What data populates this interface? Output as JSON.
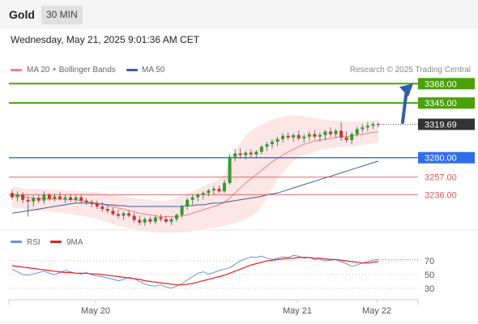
{
  "header": {
    "instrument": "Gold",
    "timeframe": "30 MIN",
    "datetime": "Wednesday, May 21, 2025 9:01:36 AM CET"
  },
  "legend": {
    "ma20_label": "MA 20 + Bollinger Bands",
    "ma20_color": "#f08080",
    "ma50_label": "MA 50",
    "ma50_color": "#3a5f9c",
    "research": "Research © 2025 Trading Central"
  },
  "colors": {
    "green": "#4aa10a",
    "blue_level": "#2f6ee8",
    "red_level": "#e05555",
    "current": "#333333",
    "arrow": "#2f5fa8",
    "band_fill": "#fde3e3",
    "rsi": "#6a8fdc",
    "rsi_ma": "#e02020"
  },
  "chart_data": [
    {
      "type": "candlestick",
      "title": "Gold",
      "timeframe": "30 MIN",
      "x_labels": [
        "May 20",
        "May 21",
        "May 22"
      ],
      "ylim": [
        3195,
        3375
      ],
      "levels": [
        {
          "label": "3368.00",
          "value": 3368.0,
          "kind": "resistance"
        },
        {
          "label": "3345.00",
          "value": 3345.0,
          "kind": "resistance"
        },
        {
          "label": "3319.69",
          "value": 3319.69,
          "kind": "current"
        },
        {
          "label": "3280.00",
          "value": 3280.0,
          "kind": "pivot"
        },
        {
          "label": "3257.00",
          "value": 3257.0,
          "kind": "support"
        },
        {
          "label": "3236.00",
          "value": 3236.0,
          "kind": "support"
        }
      ],
      "series": [
        {
          "kind": "ohlc",
          "candles": [
            [
              3238,
              3242,
              3230,
              3233
            ],
            [
              3233,
              3240,
              3228,
              3236
            ],
            [
              3236,
              3239,
              3226,
              3230
            ],
            [
              3230,
              3234,
              3210,
              3228
            ],
            [
              3228,
              3235,
              3222,
              3232
            ],
            [
              3232,
              3236,
              3226,
              3229
            ],
            [
              3229,
              3240,
              3225,
              3236
            ],
            [
              3236,
              3238,
              3229,
              3231
            ],
            [
              3231,
              3237,
              3228,
              3234
            ],
            [
              3234,
              3239,
              3229,
              3231
            ],
            [
              3231,
              3236,
              3226,
              3233
            ],
            [
              3233,
              3237,
              3228,
              3230
            ],
            [
              3230,
              3235,
              3227,
              3233
            ],
            [
              3233,
              3236,
              3226,
              3229
            ],
            [
              3229,
              3232,
              3224,
              3227
            ],
            [
              3227,
              3230,
              3221,
              3225
            ],
            [
              3225,
              3229,
              3219,
              3222
            ],
            [
              3222,
              3227,
              3216,
              3219
            ],
            [
              3219,
              3224,
              3214,
              3217
            ],
            [
              3217,
              3221,
              3211,
              3213
            ],
            [
              3213,
              3218,
              3208,
              3211
            ],
            [
              3211,
              3216,
              3206,
              3214
            ],
            [
              3214,
              3218,
              3209,
              3211
            ],
            [
              3211,
              3215,
              3203,
              3206
            ],
            [
              3206,
              3211,
              3200,
              3203
            ],
            [
              3203,
              3209,
              3199,
              3207
            ],
            [
              3207,
              3210,
              3201,
              3204
            ],
            [
              3204,
              3212,
              3201,
              3209
            ],
            [
              3209,
              3213,
              3204,
              3207
            ],
            [
              3207,
              3211,
              3202,
              3204
            ],
            [
              3204,
              3209,
              3200,
              3207
            ],
            [
              3207,
              3214,
              3204,
              3212
            ],
            [
              3212,
              3224,
              3209,
              3222
            ],
            [
              3222,
              3232,
              3218,
              3230
            ],
            [
              3230,
              3236,
              3224,
              3233
            ],
            [
              3233,
              3238,
              3228,
              3236
            ],
            [
              3236,
              3240,
              3230,
              3238
            ],
            [
              3238,
              3243,
              3234,
              3241
            ],
            [
              3241,
              3246,
              3236,
              3243
            ],
            [
              3243,
              3247,
              3238,
              3240
            ],
            [
              3240,
              3254,
              3238,
              3250
            ],
            [
              3250,
              3284,
              3248,
              3281
            ],
            [
              3281,
              3290,
              3276,
              3285
            ],
            [
              3285,
              3291,
              3279,
              3283
            ],
            [
              3283,
              3288,
              3278,
              3286
            ],
            [
              3286,
              3290,
              3280,
              3284
            ],
            [
              3284,
              3289,
              3279,
              3287
            ],
            [
              3287,
              3295,
              3284,
              3293
            ],
            [
              3293,
              3299,
              3288,
              3296
            ],
            [
              3296,
              3302,
              3291,
              3299
            ],
            [
              3299,
              3305,
              3294,
              3302
            ],
            [
              3302,
              3309,
              3298,
              3306
            ],
            [
              3306,
              3310,
              3301,
              3304
            ],
            [
              3304,
              3309,
              3299,
              3307
            ],
            [
              3307,
              3312,
              3301,
              3303
            ],
            [
              3303,
              3308,
              3298,
              3305
            ],
            [
              3305,
              3311,
              3300,
              3308
            ],
            [
              3308,
              3313,
              3302,
              3305
            ],
            [
              3305,
              3310,
              3299,
              3307
            ],
            [
              3307,
              3313,
              3301,
              3311
            ],
            [
              3311,
              3316,
              3305,
              3308
            ],
            [
              3308,
              3314,
              3304,
              3312
            ],
            [
              3312,
              3322,
              3300,
              3304
            ],
            [
              3304,
              3311,
              3298,
              3301
            ],
            [
              3301,
              3310,
              3296,
              3308
            ],
            [
              3308,
              3317,
              3305,
              3314
            ],
            [
              3314,
              3320,
              3310,
              3316
            ],
            [
              3316,
              3322,
              3312,
              3318
            ],
            [
              3318,
              3322,
              3314,
              3320
            ],
            [
              3320,
              3322,
              3316,
              3319.69
            ]
          ]
        },
        {
          "name": "MA 20 + Bollinger Bands",
          "kind": "ma20",
          "values": [
            3236,
            3235,
            3234,
            3233,
            3232,
            3232,
            3232,
            3231,
            3231,
            3231,
            3230,
            3230,
            3230,
            3229,
            3228,
            3227,
            3226,
            3225,
            3223,
            3222,
            3220,
            3219,
            3217,
            3216,
            3214,
            3213,
            3212,
            3211,
            3210,
            3210,
            3210,
            3210,
            3211,
            3212,
            3214,
            3216,
            3218,
            3220,
            3222,
            3224,
            3227,
            3232,
            3238,
            3244,
            3250,
            3255,
            3260,
            3265,
            3270,
            3275,
            3279,
            3283,
            3287,
            3290,
            3293,
            3296,
            3298,
            3300,
            3301,
            3302,
            3303,
            3304,
            3305,
            3305,
            3306,
            3307,
            3308,
            3309,
            3310,
            3311
          ]
        },
        {
          "name": "",
          "kind": "bb_upper",
          "values": [
            3246,
            3245,
            3244,
            3243,
            3243,
            3243,
            3243,
            3242,
            3242,
            3242,
            3241,
            3241,
            3241,
            3240,
            3240,
            3239,
            3239,
            3238,
            3237,
            3236,
            3235,
            3234,
            3233,
            3232,
            3231,
            3230,
            3230,
            3229,
            3229,
            3229,
            3230,
            3232,
            3234,
            3237,
            3240,
            3243,
            3246,
            3249,
            3252,
            3255,
            3260,
            3275,
            3288,
            3298,
            3306,
            3312,
            3316,
            3319,
            3322,
            3325,
            3327,
            3329,
            3330,
            3330,
            3330,
            3329,
            3328,
            3327,
            3326,
            3325,
            3324,
            3324,
            3323,
            3323,
            3323,
            3323,
            3323,
            3324,
            3324,
            3325
          ]
        },
        {
          "name": "",
          "kind": "bb_lower",
          "values": [
            3220,
            3220,
            3219,
            3218,
            3217,
            3217,
            3216,
            3216,
            3215,
            3215,
            3214,
            3213,
            3212,
            3211,
            3210,
            3209,
            3207,
            3205,
            3203,
            3201,
            3199,
            3198,
            3196,
            3195,
            3194,
            3193,
            3192,
            3191,
            3191,
            3191,
            3191,
            3191,
            3191,
            3192,
            3193,
            3194,
            3195,
            3196,
            3197,
            3198,
            3199,
            3201,
            3203,
            3205,
            3207,
            3210,
            3215,
            3222,
            3232,
            3243,
            3254,
            3262,
            3270,
            3276,
            3280,
            3283,
            3285,
            3287,
            3289,
            3290,
            3291,
            3292,
            3293,
            3293,
            3293,
            3294,
            3295,
            3296,
            3297,
            3298
          ]
        },
        {
          "name": "MA 50",
          "kind": "ma50",
          "values": [
            3214,
            3215,
            3216,
            3217,
            3218,
            3219,
            3220,
            3221,
            3222,
            3223,
            3224,
            3225,
            3226,
            3226,
            3226,
            3226,
            3225,
            3225,
            3224,
            3224,
            3223,
            3223,
            3222,
            3222,
            3222,
            3222,
            3222,
            3222,
            3222,
            3222,
            3222,
            3222,
            3222,
            3223,
            3223,
            3224,
            3224,
            3225,
            3226,
            3226,
            3227,
            3228,
            3229,
            3230,
            3231,
            3232,
            3233,
            3234,
            3236,
            3237,
            3238,
            3240,
            3242,
            3244,
            3246,
            3248,
            3250,
            3252,
            3254,
            3256,
            3258,
            3260,
            3262,
            3264,
            3266,
            3268,
            3270,
            3272,
            3274,
            3276
          ]
        }
      ]
    },
    {
      "type": "line",
      "title": "",
      "yticks": [
        70,
        50,
        30
      ],
      "ylim": [
        18,
        82
      ],
      "series": [
        {
          "name": "RSI",
          "values": [
            58,
            54,
            50,
            49,
            51,
            53,
            55,
            52,
            50,
            53,
            56,
            54,
            52,
            51,
            53,
            50,
            48,
            47,
            45,
            43,
            41,
            43,
            46,
            44,
            40,
            36,
            34,
            33,
            35,
            32,
            30,
            33,
            37,
            42,
            47,
            52,
            54,
            51,
            53,
            56,
            58,
            60,
            65,
            70,
            73,
            76,
            75,
            77,
            74,
            72,
            74,
            76,
            75,
            78,
            77,
            74,
            75,
            72,
            73,
            70,
            71,
            72,
            69,
            66,
            62,
            64,
            67,
            69,
            71,
            72
          ]
        },
        {
          "name": "9MA",
          "values": [
            63,
            62,
            61,
            60,
            59,
            58,
            57,
            56,
            55,
            54,
            53,
            53,
            52,
            52,
            52,
            51,
            51,
            50,
            49,
            48,
            47,
            46,
            45,
            44,
            43,
            41,
            40,
            39,
            38,
            37,
            36,
            35,
            35,
            36,
            37,
            39,
            41,
            43,
            45,
            47,
            49,
            52,
            55,
            58,
            61,
            64,
            66,
            68,
            70,
            71,
            72,
            73,
            74,
            74,
            75,
            75,
            75,
            74,
            74,
            73,
            72,
            72,
            71,
            70,
            69,
            68,
            67,
            67,
            68,
            69
          ]
        }
      ]
    }
  ]
}
